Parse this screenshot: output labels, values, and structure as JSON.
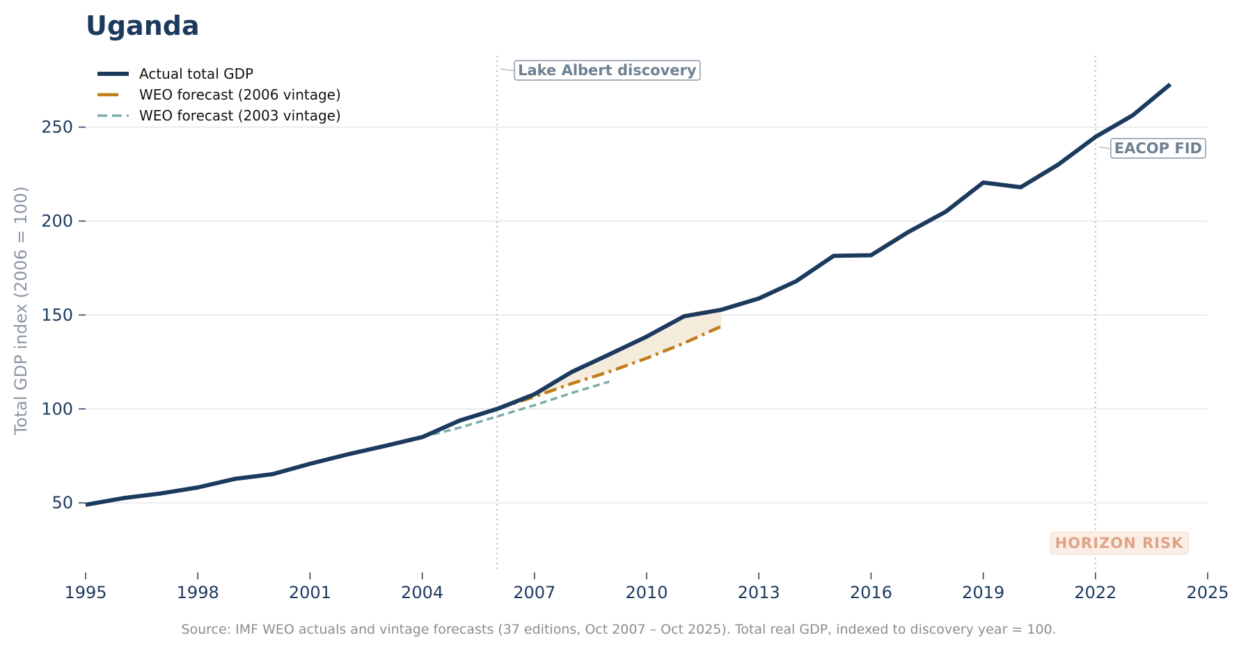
{
  "chart_data": {
    "type": "line",
    "title": "Uganda",
    "ylabel": "Total GDP index (2006 = 100)",
    "xlim": [
      1995,
      2025
    ],
    "ylim": [
      13,
      288
    ],
    "x_ticks": [
      1995,
      1998,
      2001,
      2004,
      2007,
      2010,
      2013,
      2016,
      2019,
      2022,
      2025
    ],
    "y_ticks": [
      50,
      100,
      150,
      200,
      250
    ],
    "grid": "horizontal",
    "legend_position": "top-left",
    "series": [
      {
        "name": "Actual total GDP",
        "color": "#1c3a5e",
        "style": "solid",
        "x": [
          1995,
          1996,
          1997,
          1998,
          1999,
          2000,
          2001,
          2002,
          2003,
          2004,
          2005,
          2006,
          2007,
          2008,
          2009,
          2010,
          2011,
          2012,
          2013,
          2014,
          2015,
          2016,
          2017,
          2018,
          2019,
          2020,
          2021,
          2022,
          2023,
          2024
        ],
        "y": [
          49,
          52.5,
          55,
          58.2,
          62.8,
          65.3,
          70.8,
          75.8,
          80.3,
          85,
          93.8,
          100,
          107.8,
          119.7,
          129,
          138.5,
          149.3,
          152.8,
          158.8,
          168,
          181.5,
          181.8,
          194.2,
          205,
          220.5,
          218,
          230,
          244.8,
          256.3,
          272.8
        ]
      },
      {
        "name": "WEO forecast (2006 vintage)",
        "color": "#c07d1a",
        "style": "dashdot",
        "x": [
          2006,
          2007,
          2008,
          2009,
          2010,
          2011,
          2012
        ],
        "y": [
          100,
          106.5,
          113.5,
          119.8,
          127,
          135,
          144
        ]
      },
      {
        "name": "WEO forecast (2003 vintage)",
        "color": "#7aaeaa",
        "style": "dashed",
        "x": [
          2004,
          2005,
          2006,
          2007,
          2008,
          2009
        ],
        "y": [
          85,
          90,
          96,
          102,
          108.5,
          114.5
        ]
      }
    ],
    "shaded_gap": {
      "color": "#f5ebdc",
      "x": [
        2006,
        2007,
        2008,
        2009,
        2010,
        2011,
        2012
      ]
    },
    "events": [
      {
        "year": 2006,
        "label": "Lake Albert discovery",
        "label_y": 276
      },
      {
        "year": 2022,
        "label": "EACOP FID",
        "label_y": 235
      }
    ],
    "annotation": "HORIZON RISK",
    "source": "Source: IMF WEO actuals and vintage forecasts (37 editions, Oct 2007 – Oct 2025). Total real GDP, indexed to discovery year = 100."
  }
}
